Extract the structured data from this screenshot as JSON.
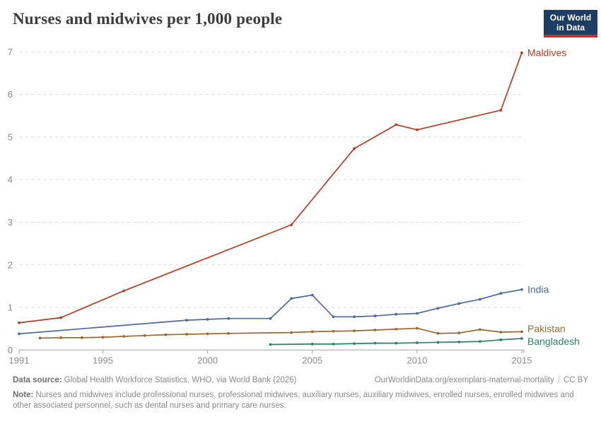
{
  "header": {
    "title": "Nurses and midwives per 1,000 people",
    "logo": {
      "line1": "Our World",
      "line2": "in Data",
      "bg_color": "#1d3d63",
      "bar_color": "#c5302b"
    }
  },
  "chart_data": {
    "type": "line",
    "title": "Nurses and midwives per 1,000 people",
    "xlabel": "",
    "ylabel": "",
    "xlim": [
      1991,
      2015.6
    ],
    "ylim": [
      0,
      7
    ],
    "x_ticks": [
      1991,
      1995,
      2000,
      2005,
      2010,
      2015
    ],
    "y_ticks": [
      0,
      1,
      2,
      3,
      4,
      5,
      6,
      7
    ],
    "grid": "horizontal-dashed",
    "legend_position": "right-edge-labels",
    "colors": {
      "grid": "#dedede",
      "axis": "#a3a3a3",
      "tick_text": "#8b8b8b"
    },
    "series": [
      {
        "name": "Maldives",
        "color": "#b93c22",
        "points": [
          [
            1991,
            0.64
          ],
          [
            1993,
            0.76
          ],
          [
            1996,
            1.39
          ],
          [
            2004,
            2.94
          ],
          [
            2007,
            4.73
          ],
          [
            2009,
            5.29
          ],
          [
            2010,
            5.17
          ],
          [
            2014,
            5.63
          ],
          [
            2015,
            6.98
          ]
        ]
      },
      {
        "name": "India",
        "color": "#4c6a9c",
        "points": [
          [
            1991,
            0.38
          ],
          [
            1999,
            0.7
          ],
          [
            2000,
            0.72
          ],
          [
            2001,
            0.74
          ],
          [
            2003,
            0.74
          ],
          [
            2004,
            1.21
          ],
          [
            2005,
            1.29
          ],
          [
            2006,
            0.78
          ],
          [
            2007,
            0.78
          ],
          [
            2008,
            0.8
          ],
          [
            2009,
            0.84
          ],
          [
            2010,
            0.86
          ],
          [
            2011,
            0.98
          ],
          [
            2012,
            1.09
          ],
          [
            2013,
            1.19
          ],
          [
            2014,
            1.33
          ],
          [
            2015,
            1.42
          ]
        ]
      },
      {
        "name": "Pakistan",
        "color": "#9a692f",
        "points": [
          [
            1992,
            0.28
          ],
          [
            1993,
            0.29
          ],
          [
            1994,
            0.29
          ],
          [
            1995,
            0.3
          ],
          [
            1996,
            0.32
          ],
          [
            1997,
            0.34
          ],
          [
            1998,
            0.36
          ],
          [
            1999,
            0.37
          ],
          [
            2000,
            0.38
          ],
          [
            2001,
            0.39
          ],
          [
            2004,
            0.41
          ],
          [
            2005,
            0.43
          ],
          [
            2006,
            0.44
          ],
          [
            2007,
            0.45
          ],
          [
            2008,
            0.47
          ],
          [
            2009,
            0.49
          ],
          [
            2010,
            0.51
          ],
          [
            2011,
            0.39
          ],
          [
            2012,
            0.4
          ],
          [
            2013,
            0.48
          ],
          [
            2014,
            0.42
          ],
          [
            2015,
            0.43
          ]
        ]
      },
      {
        "name": "Bangladesh",
        "color": "#2c8465",
        "points": [
          [
            2003,
            0.13
          ],
          [
            2005,
            0.14
          ],
          [
            2006,
            0.14
          ],
          [
            2007,
            0.15
          ],
          [
            2008,
            0.16
          ],
          [
            2009,
            0.16
          ],
          [
            2010,
            0.17
          ],
          [
            2011,
            0.18
          ],
          [
            2012,
            0.19
          ],
          [
            2013,
            0.2
          ],
          [
            2014,
            0.24
          ],
          [
            2015,
            0.27
          ]
        ]
      }
    ]
  },
  "footer": {
    "source_label": "Data source:",
    "source_text": "Global Health Workforce Statistics, WHO, via World Bank (2026)",
    "url": "OurWorldinData.org/exemplars-maternal-mortality",
    "license": "CC BY",
    "note_label": "Note:",
    "note_text": "Nurses and midwives include professional nurses, professional midwives, auxiliary nurses, auxiliary midwives, enrolled nurses, enrolled midwives and other associated personnel, such as dental nurses and primary care nurses."
  }
}
